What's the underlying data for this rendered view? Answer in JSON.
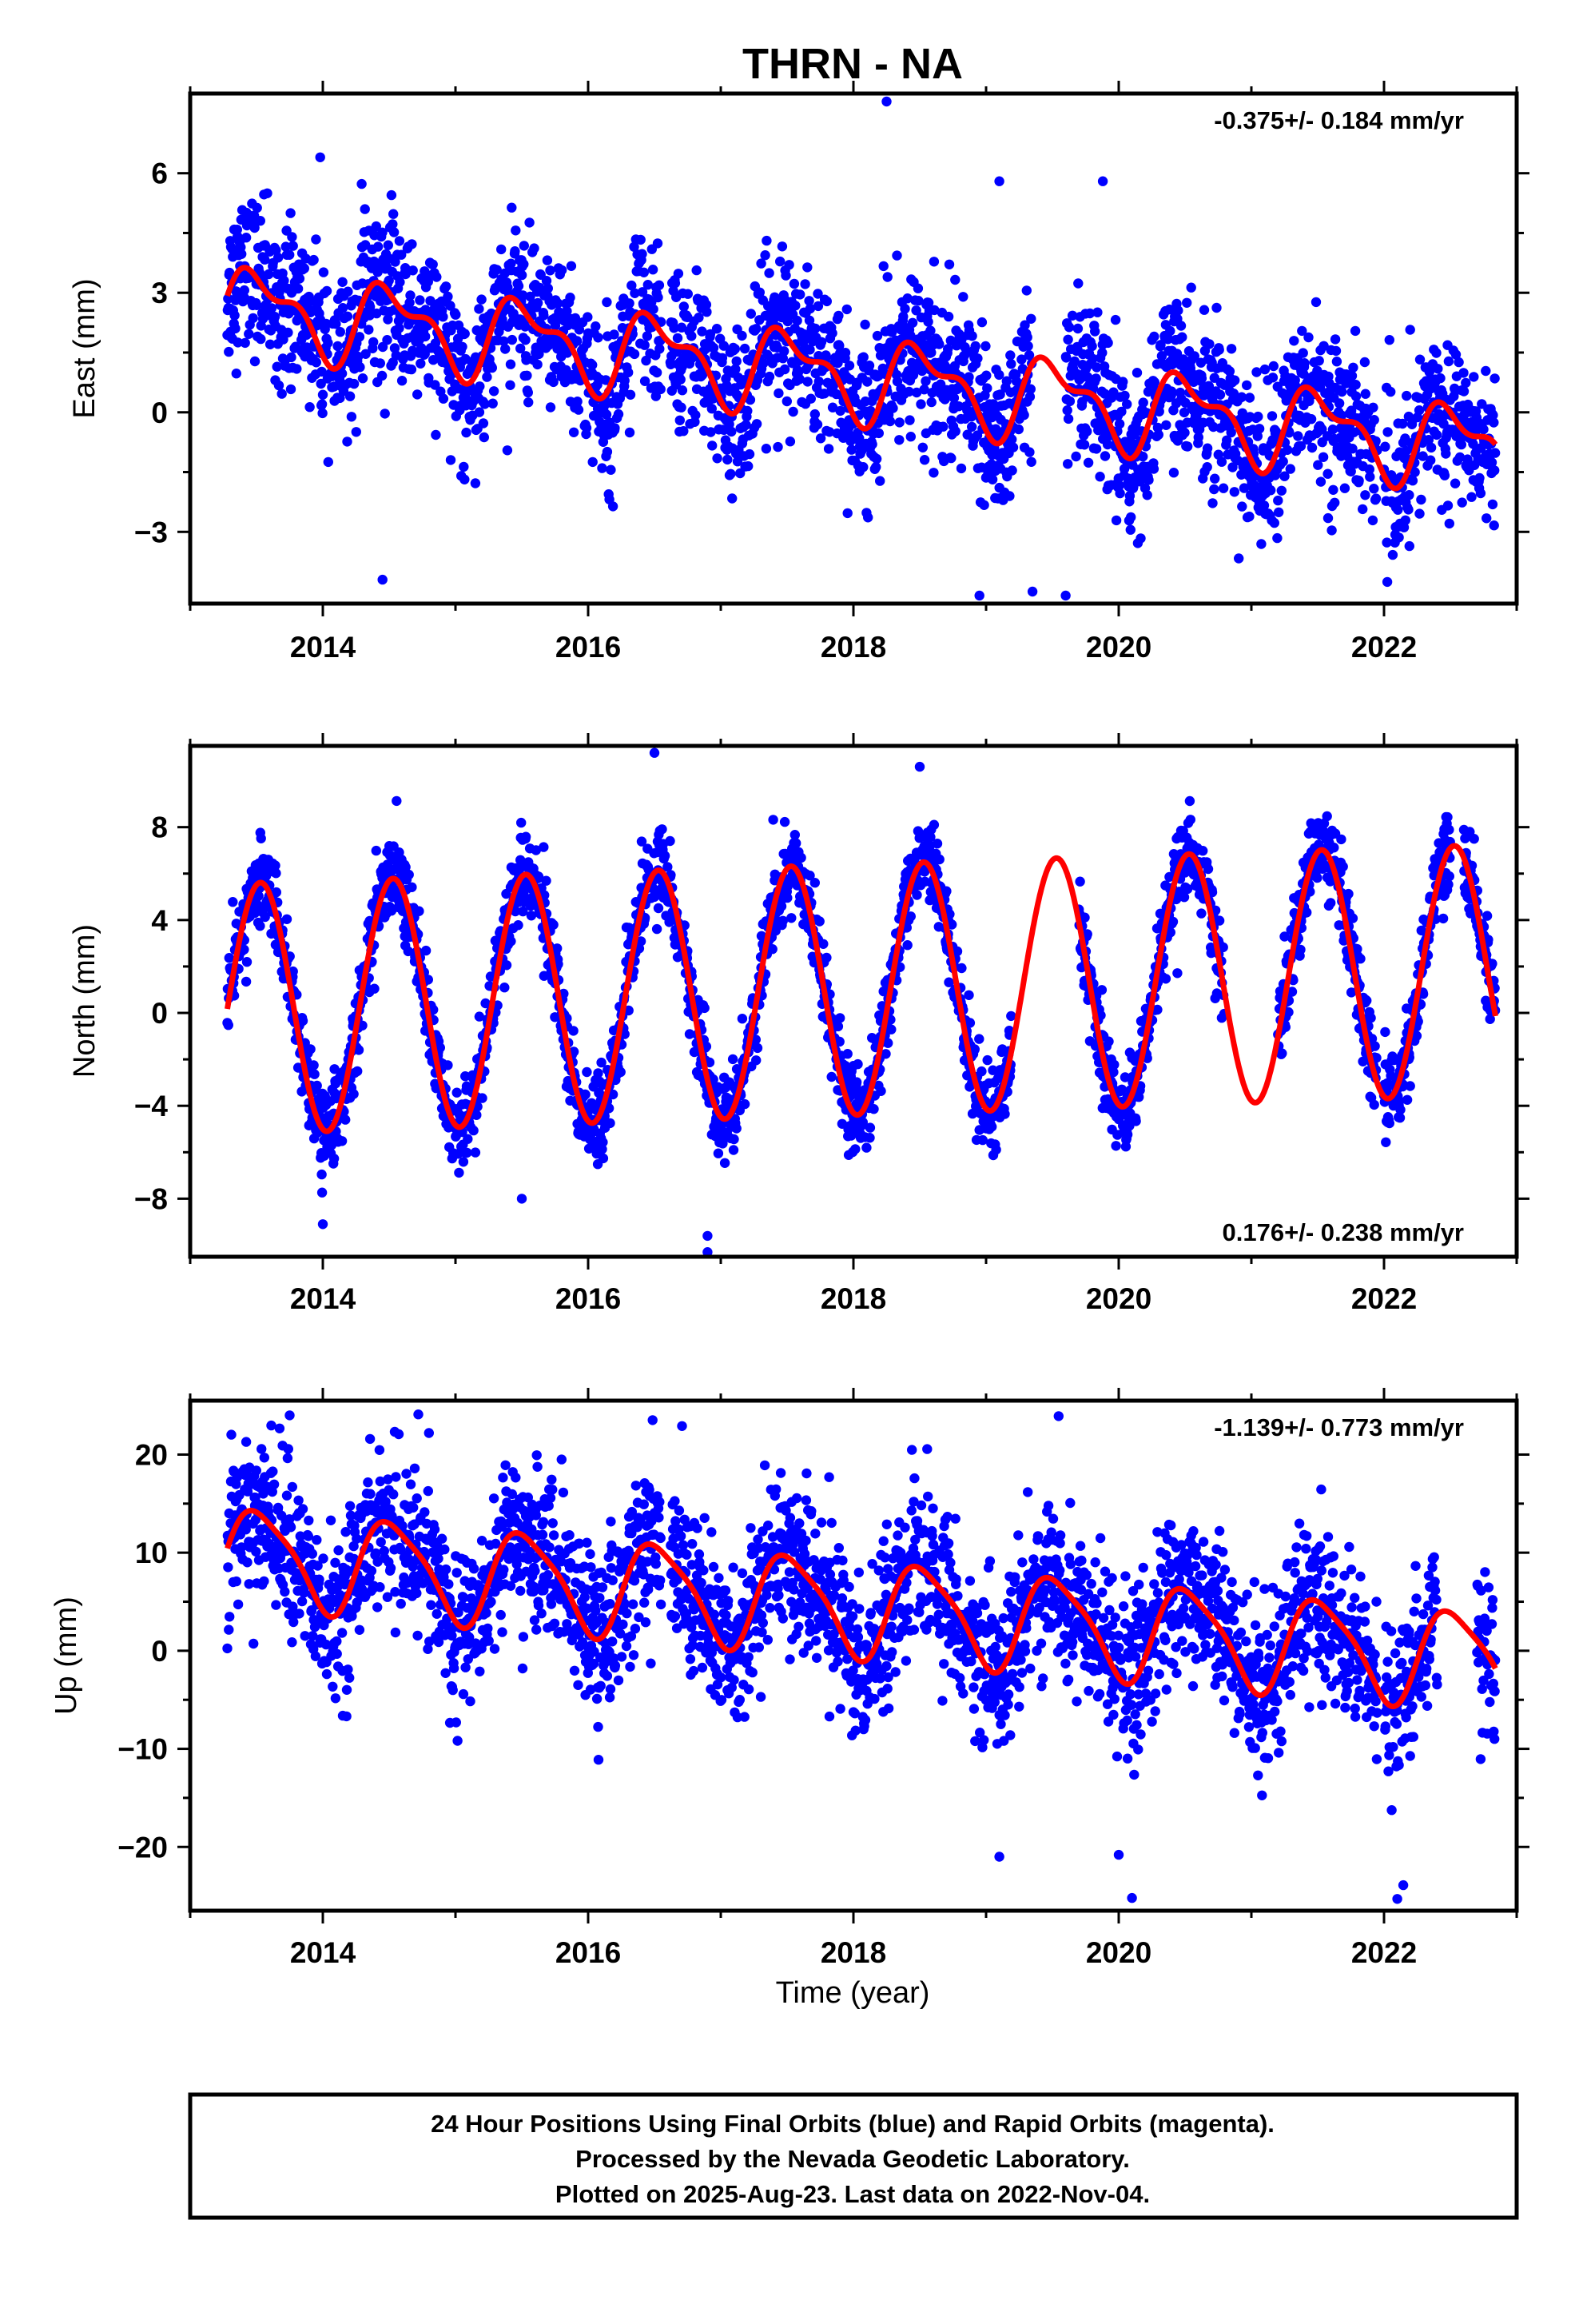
{
  "chart_data": [
    {
      "type": "scatter",
      "title": "THRN - NA",
      "xlabel": "",
      "ylabel": "East (mm)",
      "xlim": [
        2013.0,
        2023.0
      ],
      "ylim": [
        -4.8,
        8.0
      ],
      "xticks": [
        2014,
        2016,
        2018,
        2020,
        2022
      ],
      "yticks": [
        -3,
        0,
        3,
        6
      ],
      "ytick_labels": [
        "−3",
        "0",
        "3",
        "6"
      ],
      "rate_label": "-0.375+/- 0.184 mm/yr",
      "rate_position": "top-right",
      "grid": false,
      "series": [
        {
          "kind": "scatter",
          "color": "#0000ff",
          "daily_positions": {
            "start": 2013.28,
            "end": 2022.84,
            "gaps": [
              [
                2016.55,
                2016.62
              ],
              [
                2019.35,
                2019.6
              ],
              [
                2021.95,
                2022.0
              ]
            ],
            "linear_mm_per_yr": -0.375,
            "offset_mm": 0.9,
            "annual_amplitude_mm": 0.9,
            "semiannual_amplitude_mm": 0.45,
            "scatter_mm": 0.95,
            "outliers": [
              [
                2018.25,
                7.8
              ],
              [
                2013.98,
                6.4
              ],
              [
                2019.88,
                5.8
              ],
              [
                2019.1,
                5.8
              ],
              [
                2014.45,
                -4.2
              ],
              [
                2018.95,
                -4.6
              ],
              [
                2019.6,
                -4.6
              ],
              [
                2019.35,
                -4.5
              ]
            ]
          }
        },
        {
          "kind": "line",
          "color": "#ff0000",
          "model": {
            "start": 2013.28,
            "end": 2022.84,
            "linear_mm_per_yr": -0.375,
            "offset_mm": 0.9,
            "annual_amplitude_mm": 0.9,
            "semiannual_amplitude_mm": 0.45
          }
        }
      ]
    },
    {
      "type": "scatter",
      "xlabel": "",
      "ylabel": "North (mm)",
      "xlim": [
        2013.0,
        2023.0
      ],
      "ylim": [
        -10.5,
        11.5
      ],
      "xticks": [
        2014,
        2016,
        2018,
        2020,
        2022
      ],
      "yticks": [
        -8,
        -4,
        0,
        4,
        8
      ],
      "ytick_labels": [
        "−8",
        "−4",
        "0",
        "4",
        "8"
      ],
      "rate_label": "0.176+/- 0.238 mm/yr",
      "rate_position": "bottom-right",
      "grid": false,
      "series": [
        {
          "kind": "scatter",
          "color": "#0000ff",
          "daily_positions": {
            "start": 2013.28,
            "end": 2022.84,
            "gaps": [
              [
                2019.2,
                2019.7
              ],
              [
                2020.8,
                2021.2
              ],
              [
                2021.95,
                2022.0
              ],
              [
                2022.5,
                2022.6
              ]
            ],
            "linear_mm_per_yr": 0.176,
            "offset_mm": 1.0,
            "annual_amplitude_mm": 5.4,
            "semiannual_amplitude_mm": 0.0,
            "scatter_mm": 0.9,
            "outliers": [
              [
                2016.5,
                11.2
              ],
              [
                2018.5,
                10.6
              ],
              [
                2016.9,
                -10.3
              ],
              [
                2016.9,
                -9.6
              ],
              [
                2014.0,
                -9.1
              ],
              [
                2015.5,
                -8.0
              ]
            ]
          }
        },
        {
          "kind": "line",
          "color": "#ff0000",
          "model": {
            "start": 2013.28,
            "end": 2022.84,
            "linear_mm_per_yr": 0.176,
            "offset_mm": 1.0,
            "annual_amplitude_mm": 5.4,
            "semiannual_amplitude_mm": 0.0
          }
        }
      ]
    },
    {
      "type": "scatter",
      "xlabel": "Time (year)",
      "ylabel": "Up (mm)",
      "xlim": [
        2013.0,
        2023.0
      ],
      "ylim": [
        -26.5,
        25.5
      ],
      "xticks": [
        2014,
        2016,
        2018,
        2020,
        2022
      ],
      "yticks": [
        -20,
        -10,
        0,
        10,
        20
      ],
      "ytick_labels": [
        "−20",
        "−10",
        "0",
        "10",
        "20"
      ],
      "rate_label": "-1.139+/- 0.773 mm/yr",
      "rate_position": "top-right",
      "grid": false,
      "series": [
        {
          "kind": "scatter",
          "color": "#0000ff",
          "daily_positions": {
            "start": 2013.28,
            "end": 2022.84,
            "gaps": [
              [
                2016.55,
                2016.62
              ],
              [
                2021.95,
                2022.0
              ],
              [
                2022.4,
                2022.7
              ]
            ],
            "linear_mm_per_yr": -1.139,
            "offset_mm": 4.5,
            "annual_amplitude_mm": 4.8,
            "semiannual_amplitude_mm": 1.0,
            "scatter_mm": 4.0,
            "outliers": [
              [
                2013.75,
                24.0
              ],
              [
                2014.8,
                22.2
              ],
              [
                2015.8,
                19.5
              ],
              [
                2020.1,
                -25.2
              ],
              [
                2022.1,
                -25.3
              ],
              [
                2019.1,
                -21.0
              ],
              [
                2020.0,
                -20.8
              ]
            ]
          }
        },
        {
          "kind": "line",
          "color": "#ff0000",
          "model": {
            "start": 2013.28,
            "end": 2022.84,
            "linear_mm_per_yr": -1.139,
            "offset_mm": 4.5,
            "annual_amplitude_mm": 4.8,
            "semiannual_amplitude_mm": 1.0
          }
        }
      ]
    }
  ],
  "footer": {
    "line1": "24 Hour Positions Using Final Orbits (blue) and Rapid Orbits (magenta).",
    "line2": "Processed by the Nevada Geodetic Laboratory.",
    "line3": "Plotted on 2025-Aug-23. Last data on 2022-Nov-04."
  }
}
